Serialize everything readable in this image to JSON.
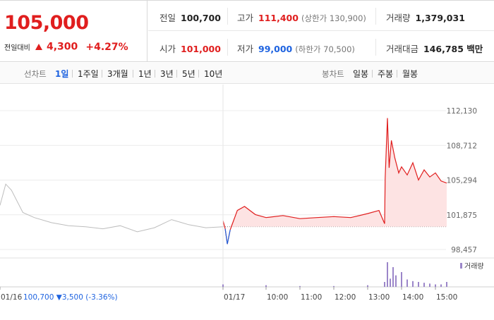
{
  "summary": {
    "current_price": "105,000",
    "change_label": "전일대비",
    "change_value": "4,300",
    "change_percent": "+4.27%"
  },
  "info": {
    "prev_close": {
      "label": "전일",
      "value": "100,700"
    },
    "high": {
      "label": "고가",
      "value": "111,400",
      "sub": "(상한가 130,900)"
    },
    "volume": {
      "label": "거래량",
      "value": "1,379,031"
    },
    "open": {
      "label": "시가",
      "value": "101,000"
    },
    "low": {
      "label": "저가",
      "value": "99,000",
      "sub": "(하한가 70,500)"
    },
    "trade_amount": {
      "label": "거래대금",
      "value": "146,785 백만"
    }
  },
  "tabs": {
    "line_label": "선차트",
    "line_tabs": [
      "1일",
      "1주일",
      "3개월",
      "1년",
      "3년",
      "5년",
      "10년"
    ],
    "active": "1일",
    "candle_label": "봉차트",
    "candle_tabs": [
      "일봉",
      "주봉",
      "월봉"
    ]
  },
  "colors": {
    "up": "#e01e1e",
    "down": "#1e63e0",
    "prev_day_line": "#bdbdbd",
    "area_fill": "#fde3e3",
    "volume_bar": "#9b86c9"
  },
  "chart_data": {
    "type": "line",
    "y_ticks": [
      "112,130",
      "108,712",
      "105,294",
      "101,875",
      "98,457"
    ],
    "ylim": [
      98457,
      112130
    ],
    "x_labels": [
      "01/16",
      "01/17",
      "10:00",
      "11:00",
      "12:00",
      "13:00",
      "14:00",
      "15:00"
    ],
    "reference_price": 100700,
    "series": [
      {
        "period": "01/16",
        "x": [
          "01/16 09:00",
          "01/16 09:10",
          "01/16 09:20",
          "01/16 09:40",
          "01/16 10:00",
          "01/16 10:30",
          "01/16 11:00",
          "01/16 11:30",
          "01/16 12:00",
          "01/16 12:30",
          "01/16 13:00",
          "01/16 13:30",
          "01/16 14:00",
          "01/16 14:30",
          "01/16 15:00",
          "01/16 15:30"
        ],
        "y": [
          102800,
          104900,
          104300,
          102100,
          101600,
          101100,
          100800,
          100700,
          100500,
          100800,
          100200,
          100600,
          101400,
          100900,
          100600,
          100700
        ]
      },
      {
        "period": "01/17",
        "x": [
          "09:00",
          "09:03",
          "09:06",
          "09:10",
          "09:20",
          "09:30",
          "09:45",
          "10:00",
          "10:30",
          "11:00",
          "11:30",
          "12:00",
          "12:30",
          "13:00",
          "13:20",
          "13:30",
          "13:31",
          "13:35",
          "13:38",
          "13:42",
          "13:48",
          "13:55",
          "14:00",
          "14:10",
          "14:20",
          "14:30",
          "14:40",
          "14:50",
          "15:00",
          "15:10",
          "15:20"
        ],
        "y": [
          101300,
          100500,
          99000,
          100400,
          102300,
          102700,
          101900,
          101600,
          101800,
          101500,
          101600,
          101700,
          101600,
          102000,
          102300,
          101000,
          105500,
          111400,
          106500,
          109200,
          107500,
          106000,
          106600,
          105800,
          107000,
          105300,
          106300,
          105600,
          106000,
          105200,
          105000
        ]
      }
    ],
    "volume_label": "거래량",
    "volume": {
      "x": [
        "09:00",
        "10:00",
        "11:00",
        "12:00",
        "13:00",
        "13:30",
        "13:35",
        "13:40",
        "13:45",
        "13:50",
        "14:00",
        "14:10",
        "14:20",
        "14:30",
        "14:40",
        "14:50",
        "15:00",
        "15:10",
        "15:20"
      ],
      "values": [
        3,
        2,
        1,
        1,
        2,
        6,
        30,
        10,
        24,
        14,
        18,
        9,
        7,
        6,
        5,
        4,
        3,
        3,
        6
      ]
    },
    "footer": {
      "date": "01/16",
      "close": "100,700",
      "change": "3,500",
      "change_pct": "(-3.36%)"
    }
  }
}
